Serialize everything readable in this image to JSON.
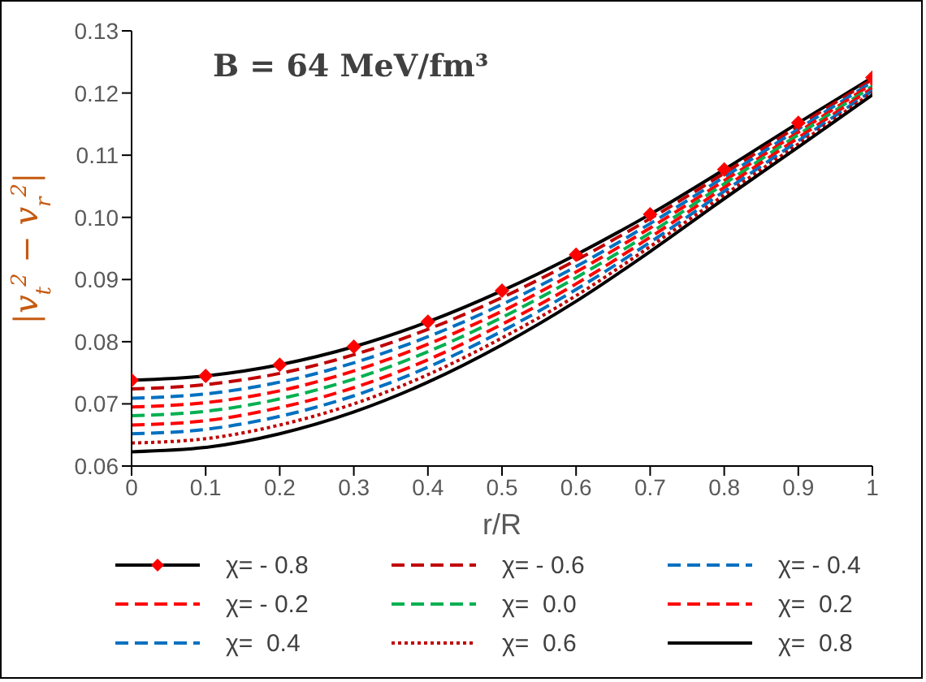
{
  "chart_data": {
    "type": "line",
    "xlabel": "r/R",
    "ylabel": "|v$_{t}$$^{2}$ − v$_{r}$$^{2}$|",
    "annotations": [
      "B = 64 MeV/fm³"
    ],
    "x": [
      0,
      0.1,
      0.2,
      0.3,
      0.4,
      0.5,
      0.6,
      0.7,
      0.8,
      0.9,
      1
    ],
    "xlim": [
      0,
      1
    ],
    "xticks": [
      0,
      0.1,
      0.2,
      0.3,
      0.4,
      0.5,
      0.6,
      0.7,
      0.8,
      0.9,
      1
    ],
    "ylim": [
      0.06,
      0.13
    ],
    "yticks": [
      0.06,
      0.07,
      0.08,
      0.09,
      {
        "value": 0.1,
        "label": "0.10"
      },
      0.11,
      0.12,
      0.13
    ],
    "grid": false,
    "legend": "bottom",
    "series": [
      {
        "name": "χ= - 0.8",
        "color": "#000000",
        "marker": "diamond",
        "colors": [
          "#ff0000",
          "#ff0000",
          "#ff0000",
          "#ff0000",
          "#ff0000",
          "#ff0000",
          "#ff0000",
          "#ff0000",
          "#ff0000",
          "#ff0000",
          "#ff0000"
        ],
        "line_style": "solid",
        "values": [
          0.0738,
          0.0745,
          0.0763,
          0.0792,
          0.0832,
          0.0882,
          0.094,
          0.1005,
          0.1077,
          0.1152,
          0.1225
        ]
      },
      {
        "name": "χ= - 0.6",
        "color": "#c00000",
        "line_style": "dashed",
        "values": [
          0.0724,
          0.0731,
          0.0749,
          0.0779,
          0.082,
          0.0871,
          0.0931,
          0.0998,
          0.1071,
          0.1147,
          0.1222
        ]
      },
      {
        "name": "χ= - 0.4",
        "color": "#0070c0",
        "line_style": "dashed",
        "values": [
          0.0709,
          0.0716,
          0.0735,
          0.0766,
          0.0808,
          0.086,
          0.0921,
          0.099,
          0.1065,
          0.1142,
          0.1218
        ]
      },
      {
        "name": "χ= - 0.2",
        "color": "#ff0000",
        "line_style": "dashed",
        "values": [
          0.0695,
          0.0702,
          0.0721,
          0.0753,
          0.0796,
          0.0849,
          0.0912,
          0.0983,
          0.1059,
          0.1137,
          0.1215
        ]
      },
      {
        "name": "χ=  0.0",
        "color": "#00b050",
        "line_style": "dashed",
        "values": [
          0.0681,
          0.0688,
          0.0708,
          0.074,
          0.0784,
          0.0839,
          0.0903,
          0.0975,
          0.1054,
          0.1133,
          0.1211
        ]
      },
      {
        "name": "χ=  0.2",
        "color": "#ff0000",
        "line_style": "dashed",
        "values": [
          0.0666,
          0.0673,
          0.0694,
          0.0726,
          0.0771,
          0.0828,
          0.0893,
          0.0968,
          0.1048,
          0.1128,
          0.1208
        ]
      },
      {
        "name": "χ=  0.4",
        "color": "#0070c0",
        "line_style": "dashed",
        "values": [
          0.0652,
          0.0659,
          0.068,
          0.0713,
          0.0759,
          0.0817,
          0.0884,
          0.096,
          0.1042,
          0.1123,
          0.1204
        ]
      },
      {
        "name": "χ=  0.6",
        "color": "#c00000",
        "line_style": "dotted",
        "values": [
          0.0637,
          0.0644,
          0.0666,
          0.07,
          0.0747,
          0.0806,
          0.0874,
          0.0953,
          0.1036,
          0.1118,
          0.1201
        ]
      },
      {
        "name": "χ=  0.8",
        "color": "#000000",
        "line_style": "solid",
        "values": [
          0.0623,
          0.063,
          0.0652,
          0.0687,
          0.0735,
          0.0795,
          0.0865,
          0.0945,
          0.103,
          0.1113,
          0.1197
        ]
      }
    ]
  }
}
